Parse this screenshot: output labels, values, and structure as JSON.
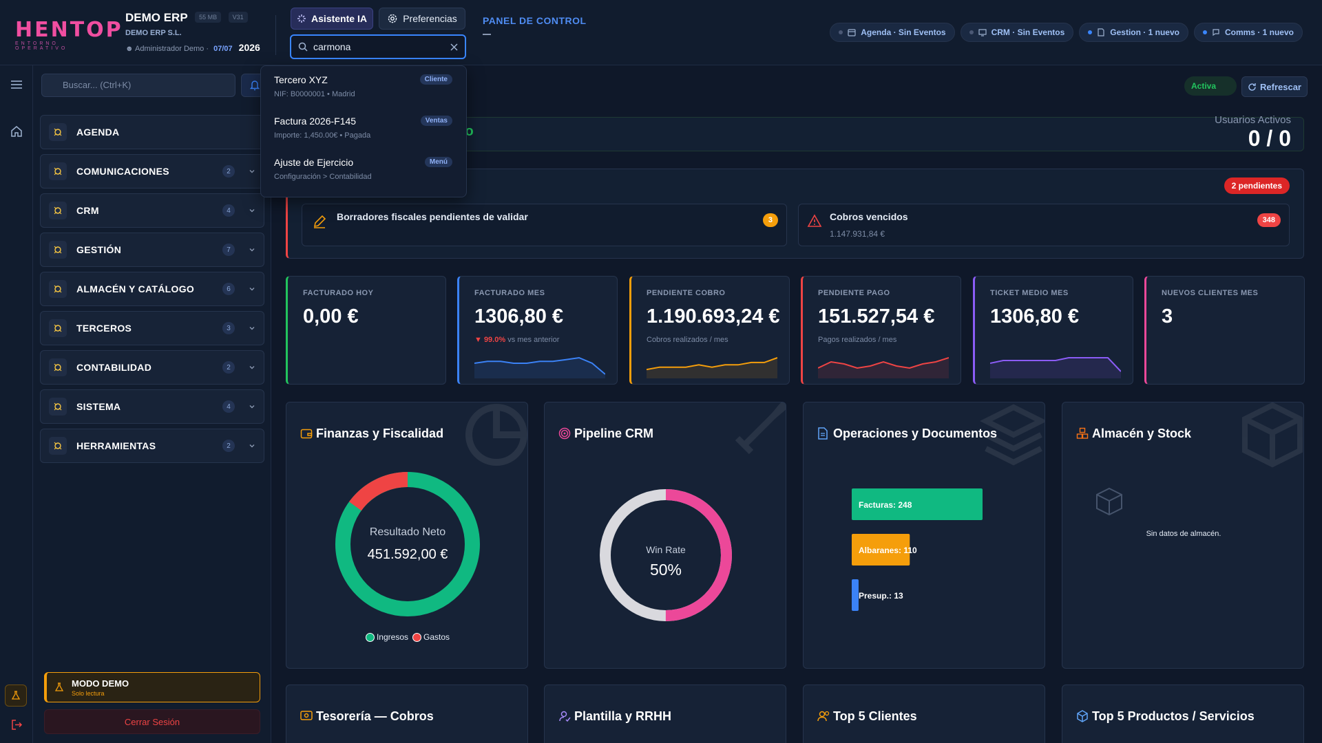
{
  "brand": {
    "logo": "HENTOP",
    "tagline": "ENTORNO OPERATIVO"
  },
  "company": {
    "name": "DEMO ERP",
    "size": "55 MB",
    "version": "V31",
    "legal": "DEMO ERP S.L.",
    "user": "Administrador Demo",
    "date": "07/07",
    "year": "2026"
  },
  "toolbar": {
    "ai_label": "Asistente IA",
    "pref_label": "Preferencias"
  },
  "global_search": {
    "value": "carmona"
  },
  "panel_title": "PANEL DE CONTROL",
  "chips": [
    {
      "label": "Agenda · Sin Eventos",
      "icon": "calendar-icon",
      "active": false
    },
    {
      "label": "CRM · Sin Eventos",
      "icon": "monitor-icon",
      "active": false
    },
    {
      "label": "Gestion · 1 nuevo",
      "icon": "document-icon",
      "active": true
    },
    {
      "label": "Comms · 1 nuevo",
      "icon": "chat-icon",
      "active": true
    }
  ],
  "search_results": [
    {
      "title": "Tercero XYZ",
      "sub": "NIF: B0000001 • Madrid",
      "tag": "Cliente"
    },
    {
      "title": "Factura 2026-F145",
      "sub": "Importe: 1,450.00€ • Pagada",
      "tag": "Ventas"
    },
    {
      "title": "Ajuste de Ejercicio",
      "sub": "Configuración > Contabilidad",
      "tag": "Menú"
    }
  ],
  "sidebar": {
    "search_placeholder": "Buscar... (Ctrl+K)",
    "items": [
      {
        "label": "AGENDA",
        "count": ""
      },
      {
        "label": "COMUNICACIONES",
        "count": "2"
      },
      {
        "label": "CRM",
        "count": "4"
      },
      {
        "label": "GESTIÓN",
        "count": "7"
      },
      {
        "label": "ALMACÉN Y CATÁLOGO",
        "count": "6"
      },
      {
        "label": "TERCEROS",
        "count": "3"
      },
      {
        "label": "CONTABILIDAD",
        "count": "2"
      },
      {
        "label": "SISTEMA",
        "count": "4"
      },
      {
        "label": "HERRAMIENTAS",
        "count": "2"
      }
    ],
    "demo_title": "MODO DEMO",
    "demo_sub": "Solo lectura",
    "logout": "Cerrar Sesión"
  },
  "header": {
    "status": "Activa",
    "refresh": "Refrescar"
  },
  "welcome": {
    "tail": "lo",
    "users_label": "Usuarios Activos",
    "users_value": "0 / 0"
  },
  "alerts": {
    "badge": "2 pendientes",
    "items": [
      {
        "title": "Borradores fiscales pendientes de validar",
        "sub": "",
        "count": "3",
        "color": "#f59e0b"
      },
      {
        "title": "Cobros vencidos",
        "sub": "1.147.931,84 €",
        "count": "348",
        "color": "#ef4444"
      }
    ]
  },
  "kpis": [
    {
      "label": "FACTURADO HOY",
      "value": "0,00 €",
      "color": "#22c55e",
      "trend": "",
      "trend_text": "",
      "sub": "",
      "spark": []
    },
    {
      "label": "FACTURADO MES",
      "value": "1306,80 €",
      "color": "#3b82f6",
      "trend": "▼ 99.0%",
      "trend_text": "vs mes anterior",
      "sub": "",
      "spark": [
        6,
        7,
        7,
        6,
        6,
        7,
        7,
        8,
        9,
        6,
        0
      ]
    },
    {
      "label": "PENDIENTE COBRO",
      "value": "1.190.693,24 €",
      "color": "#f59e0b",
      "trend": "",
      "trend_text": "",
      "sub": "Cobros realizados / mes",
      "spark": [
        2,
        3,
        3,
        3,
        4,
        3,
        4,
        4,
        5,
        5,
        7
      ]
    },
    {
      "label": "PENDIENTE PAGO",
      "value": "151.527,54 €",
      "color": "#ef4444",
      "trend": "",
      "trend_text": "",
      "sub": "Pagos realizados / mes",
      "spark": [
        3,
        6,
        5,
        3,
        4,
        6,
        4,
        3,
        5,
        6,
        8
      ]
    },
    {
      "label": "TICKET MEDIO MES",
      "value": "1306,80 €",
      "color": "#8b5cf6",
      "trend": "",
      "trend_text": "",
      "sub": "",
      "spark": [
        4,
        5,
        5,
        5,
        5,
        5,
        6,
        6,
        6,
        6,
        1
      ]
    },
    {
      "label": "NUEVOS CLIENTES MES",
      "value": "3",
      "color": "#ec4899",
      "trend": "",
      "trend_text": "",
      "sub": "",
      "spark": []
    }
  ],
  "cards": {
    "finance": {
      "title": "Finanzas y Fiscalidad",
      "center_label": "Resultado Neto",
      "center_value": "451.592,00 €",
      "legend": [
        "Ingresos",
        "Gastos"
      ],
      "ingresos_color": "#10b981",
      "gastos_color": "#ef4444",
      "gastos_share": 0.15
    },
    "pipeline": {
      "title": "Pipeline CRM",
      "center_label": "Win Rate",
      "center_value": "50%",
      "win_rate": 0.5,
      "color": "#ec4899"
    },
    "operations": {
      "title": "Operaciones y Documentos"
    },
    "stock": {
      "title": "Almacén y Stock",
      "empty": "Sin datos de almacén."
    }
  },
  "chart_data": {
    "type": "bar",
    "categories": [
      "Facturas",
      "Albaranes",
      "Presup."
    ],
    "values": [
      248,
      110,
      13
    ],
    "colors": [
      "#10b981",
      "#f59e0b",
      "#3b82f6"
    ]
  },
  "bottom_cards": [
    {
      "title": "Tesorería — Cobros",
      "icon": "wallet-icon"
    },
    {
      "title": "Plantilla y RRHH",
      "icon": "user-icon"
    },
    {
      "title": "Top 5 Clientes",
      "icon": "users-icon"
    },
    {
      "title": "Top 5 Productos / Servicios",
      "icon": "box-icon"
    }
  ]
}
